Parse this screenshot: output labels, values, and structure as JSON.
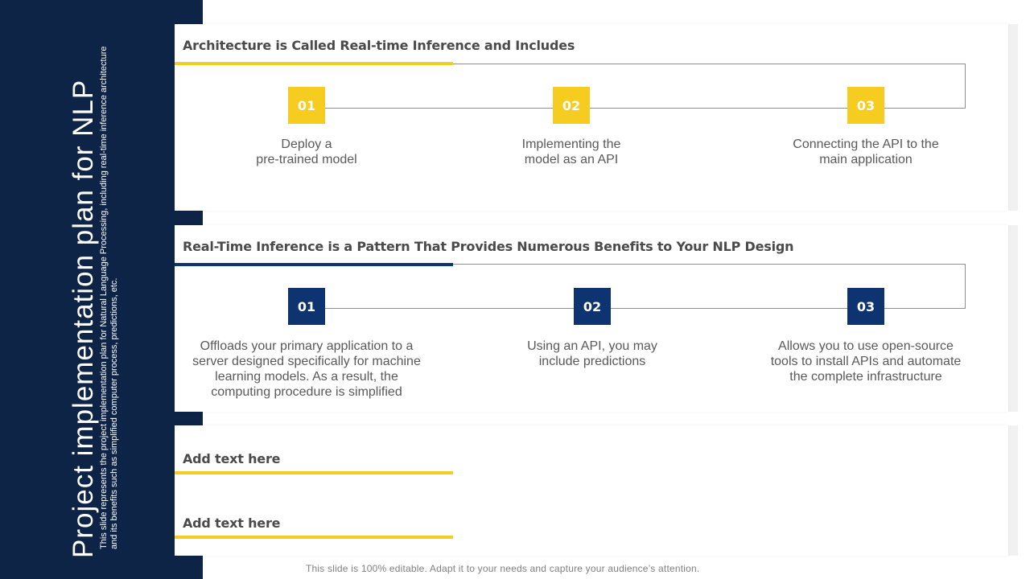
{
  "slide": {
    "title": "Project implementation plan for NLP",
    "description": "This slide represents the project implementation plan for Natural Language Processing, including real-time inference architecture and its benefits such as simplified computer process, predictions, etc.",
    "footer": "This slide is 100% editable. Adapt it to your needs and capture your audience’s attention."
  },
  "colors": {
    "navy": "#0d2447",
    "badge_navy": "#0d3470",
    "yellow": "#f5cc1f"
  },
  "section1": {
    "heading": "Architecture is Called Real-time Inference and Includes",
    "steps": [
      {
        "number": "01",
        "text_line1": "Deploy a",
        "text_line2": "pre-trained model"
      },
      {
        "number": "02",
        "text_line1": "Implementing the",
        "text_line2": "model as an API"
      },
      {
        "number": "03",
        "text_line1": "Connecting the API to the",
        "text_line2": "main application"
      }
    ]
  },
  "section2": {
    "heading": "Real-Time Inference is a Pattern That Provides Numerous Benefits to Your NLP Design",
    "steps": [
      {
        "number": "01",
        "lines": [
          "Offloads your primary application to a",
          "server designed specifically for machine",
          "learning models. As a result, the",
          "computing procedure is simplified"
        ]
      },
      {
        "number": "02",
        "lines": [
          "Using an API, you may",
          "include predictions"
        ]
      },
      {
        "number": "03",
        "lines": [
          "Allows you to use open-source",
          "tools to install APIs and automate",
          "the complete infrastructure"
        ]
      }
    ]
  },
  "section3": {
    "items": [
      {
        "label": "Add text here"
      },
      {
        "label": "Add text here"
      }
    ]
  }
}
